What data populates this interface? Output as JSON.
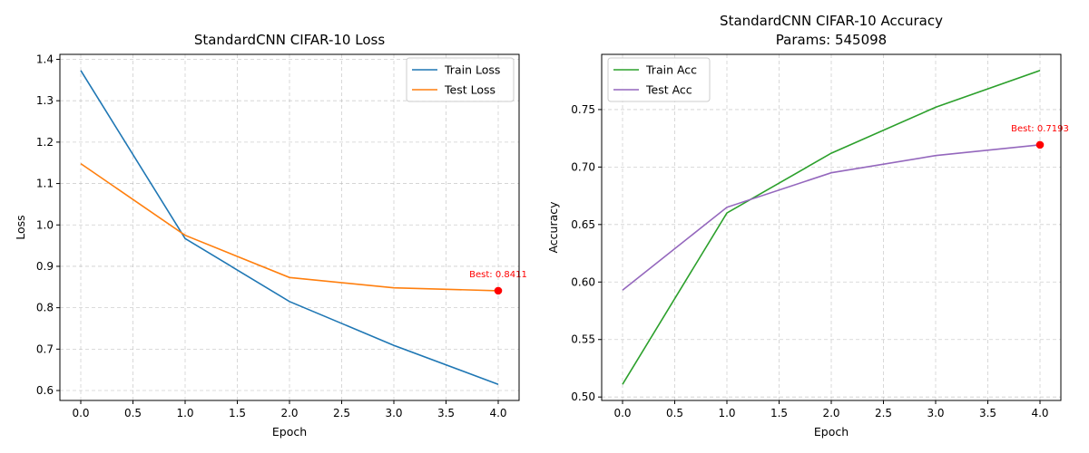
{
  "chart_data": [
    {
      "type": "line",
      "title": "StandardCNN CIFAR-10 Loss",
      "xlabel": "Epoch",
      "ylabel": "Loss",
      "x": [
        0,
        1,
        2,
        3,
        4
      ],
      "xlim": [
        -0.2,
        4.2
      ],
      "ylim": [
        0.576,
        1.412
      ],
      "xticks": [
        0.0,
        0.5,
        1.0,
        1.5,
        2.0,
        2.5,
        3.0,
        3.5,
        4.0
      ],
      "xtick_labels": [
        "0.0",
        "0.5",
        "1.0",
        "1.5",
        "2.0",
        "2.5",
        "3.0",
        "3.5",
        "4.0"
      ],
      "yticks": [
        0.6,
        0.7,
        0.8,
        0.9,
        1.0,
        1.1,
        1.2,
        1.3,
        1.4
      ],
      "ytick_labels": [
        "0.6",
        "0.7",
        "0.8",
        "0.9",
        "1.0",
        "1.1",
        "1.2",
        "1.3",
        "1.4"
      ],
      "grid": true,
      "legend_position": "upper-right",
      "series": [
        {
          "name": "Train Loss",
          "color": "#1f77b4",
          "values": [
            1.373,
            0.967,
            0.815,
            0.709,
            0.615
          ]
        },
        {
          "name": "Test Loss",
          "color": "#ff7f0e",
          "values": [
            1.148,
            0.975,
            0.873,
            0.848,
            0.8411
          ]
        }
      ],
      "best": {
        "x": 4,
        "y": 0.8411,
        "label": "Best: 0.8411",
        "color": "#ff0000"
      }
    },
    {
      "type": "line",
      "title": "StandardCNN CIFAR-10 Accuracy",
      "subtitle": "Params: 545098",
      "xlabel": "Epoch",
      "ylabel": "Accuracy",
      "x": [
        0,
        1,
        2,
        3,
        4
      ],
      "xlim": [
        -0.2,
        4.2
      ],
      "ylim": [
        0.497,
        0.798
      ],
      "xticks": [
        0.0,
        0.5,
        1.0,
        1.5,
        2.0,
        2.5,
        3.0,
        3.5,
        4.0
      ],
      "xtick_labels": [
        "0.0",
        "0.5",
        "1.0",
        "1.5",
        "2.0",
        "2.5",
        "3.0",
        "3.5",
        "4.0"
      ],
      "yticks": [
        0.5,
        0.55,
        0.6,
        0.65,
        0.7,
        0.75
      ],
      "ytick_labels": [
        "0.50",
        "0.55",
        "0.60",
        "0.65",
        "0.70",
        "0.75"
      ],
      "grid": true,
      "legend_position": "upper-left",
      "series": [
        {
          "name": "Train Acc",
          "color": "#2ca02c",
          "values": [
            0.511,
            0.66,
            0.712,
            0.752,
            0.784
          ]
        },
        {
          "name": "Test Acc",
          "color": "#9467bd",
          "values": [
            0.593,
            0.665,
            0.695,
            0.71,
            0.7193
          ]
        }
      ],
      "best": {
        "x": 4,
        "y": 0.7193,
        "label": "Best: 0.7193",
        "color": "#ff0000"
      }
    }
  ]
}
